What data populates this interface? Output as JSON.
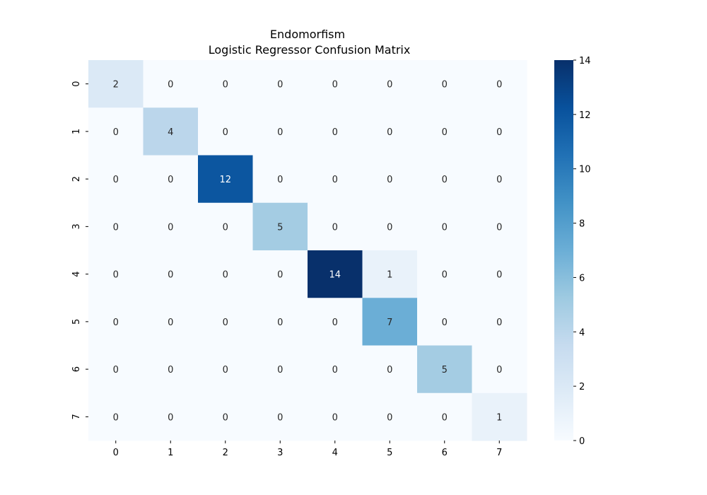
{
  "chart_data": {
    "type": "heatmap",
    "title_line1": "Endomorfism",
    "title_line2": " Logistic Regressor Confusion Matrix",
    "xlabel": "",
    "ylabel": "",
    "x_categories": [
      "0",
      "1",
      "2",
      "3",
      "4",
      "5",
      "6",
      "7"
    ],
    "y_categories": [
      "0",
      "1",
      "2",
      "3",
      "4",
      "5",
      "6",
      "7"
    ],
    "matrix": [
      [
        2,
        0,
        0,
        0,
        0,
        0,
        0,
        0
      ],
      [
        0,
        4,
        0,
        0,
        0,
        0,
        0,
        0
      ],
      [
        0,
        0,
        12,
        0,
        0,
        0,
        0,
        0
      ],
      [
        0,
        0,
        0,
        5,
        0,
        0,
        0,
        0
      ],
      [
        0,
        0,
        0,
        0,
        14,
        1,
        0,
        0
      ],
      [
        0,
        0,
        0,
        0,
        0,
        7,
        0,
        0
      ],
      [
        0,
        0,
        0,
        0,
        0,
        0,
        5,
        0
      ],
      [
        0,
        0,
        0,
        0,
        0,
        0,
        0,
        1
      ]
    ],
    "colorbar": {
      "colormap": "Blues",
      "min": 0,
      "max": 14,
      "ticks": [
        "0",
        "2",
        "4",
        "6",
        "8",
        "10",
        "12",
        "14"
      ]
    },
    "grid": false
  }
}
